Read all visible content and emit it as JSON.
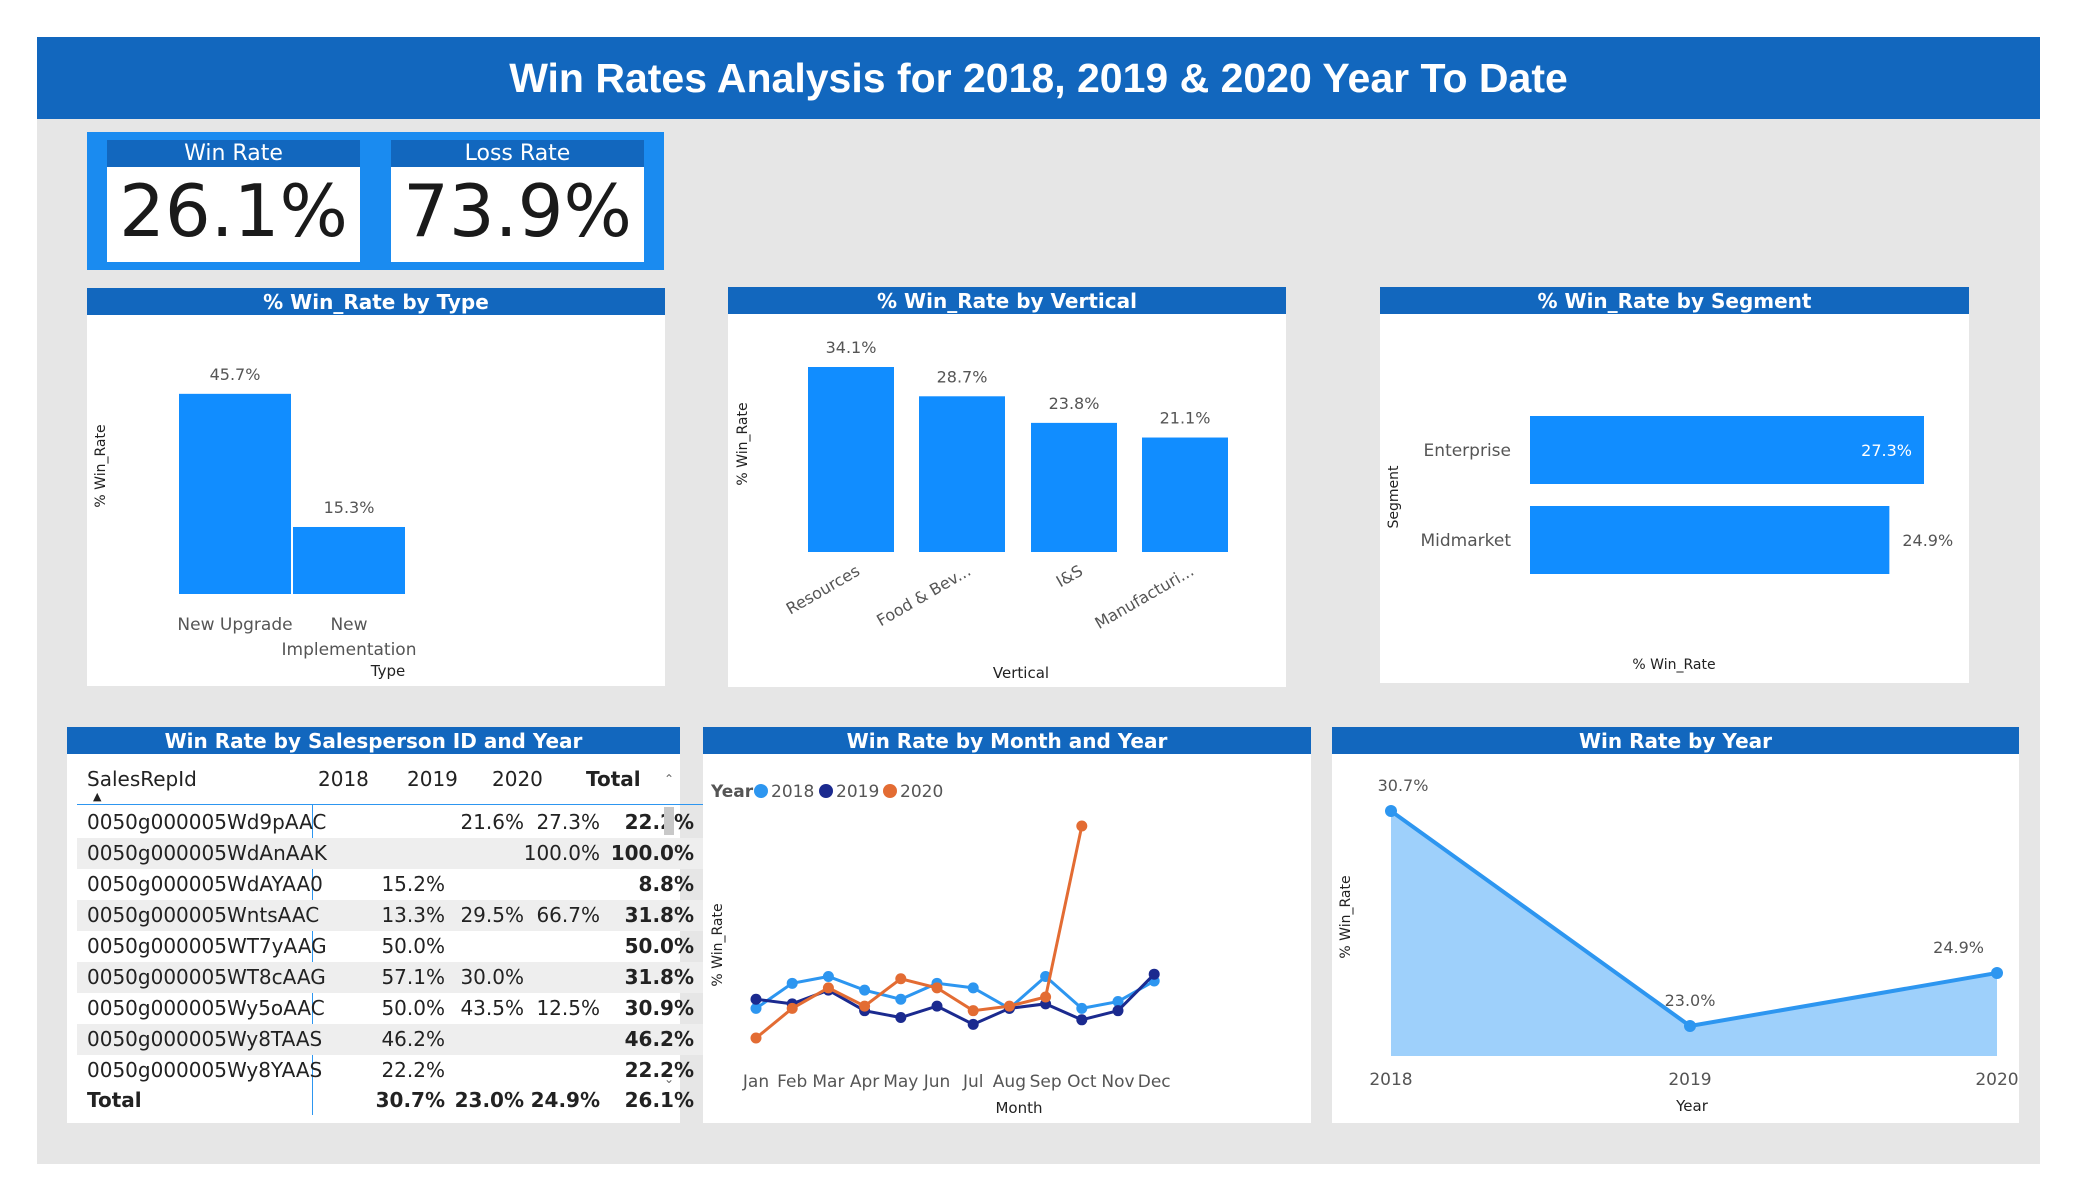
{
  "title": "Win Rates Analysis for 2018, 2019 & 2020 Year To Date",
  "kpis": {
    "win": {
      "label": "Win Rate",
      "value": "26.1%"
    },
    "loss": {
      "label": "Loss Rate",
      "value": "73.9%"
    }
  },
  "colors": {
    "header": "#1267be",
    "bar": "#118dff",
    "s2018": "#2d96f0",
    "s2019": "#1b2a8f",
    "s2020": "#e36c33",
    "area": "#9ed0fb"
  },
  "chart_data": [
    {
      "id": "by_type",
      "type": "bar",
      "title": "% Win_Rate by Type",
      "xlabel": "Type",
      "ylabel": "% Win_Rate",
      "categories": [
        "New Upgrade",
        "New Implementation"
      ],
      "values": [
        45.7,
        15.3
      ],
      "labels": [
        "45.7%",
        "15.3%"
      ],
      "ylim": [
        0,
        50
      ]
    },
    {
      "id": "by_vertical",
      "type": "bar",
      "title": "% Win_Rate by Vertical",
      "xlabel": "Vertical",
      "ylabel": "% Win_Rate",
      "categories": [
        "Resources",
        "Food & Bev...",
        "I&S",
        "Manufacturi..."
      ],
      "values": [
        34.1,
        28.7,
        23.8,
        21.1
      ],
      "labels": [
        "34.1%",
        "28.7%",
        "23.8%",
        "21.1%"
      ],
      "ylim": [
        0,
        38
      ]
    },
    {
      "id": "by_segment",
      "type": "bar",
      "orientation": "horizontal",
      "title": "% Win_Rate by Segment",
      "xlabel": "% Win_Rate",
      "ylabel": "Segment",
      "categories": [
        "Enterprise",
        "Midmarket"
      ],
      "values": [
        27.3,
        24.9
      ],
      "labels": [
        "27.3%",
        "24.9%"
      ],
      "xlim": [
        0,
        30
      ]
    },
    {
      "id": "by_month",
      "type": "line",
      "title": "Win Rate by Month and Year",
      "xlabel": "Month",
      "ylabel": "% Win_Rate",
      "legend_title": "Year",
      "legend_position": "top-left",
      "categories": [
        "Jan",
        "Feb",
        "Mar",
        "Apr",
        "May",
        "Jun",
        "Jul",
        "Aug",
        "Sep",
        "Oct",
        "Nov",
        "Dec"
      ],
      "ylim": [
        0,
        100
      ],
      "series": [
        {
          "name": "2018",
          "values": [
            20,
            31,
            34,
            28,
            24,
            31,
            29,
            20,
            34,
            20,
            23,
            32
          ]
        },
        {
          "name": "2019",
          "values": [
            24,
            22,
            28,
            19,
            16,
            21,
            13,
            20,
            22,
            15,
            19,
            35
          ]
        },
        {
          "name": "2020",
          "values": [
            7,
            20,
            29,
            21,
            33,
            29,
            19,
            21,
            25,
            100,
            null,
            null
          ]
        }
      ]
    },
    {
      "id": "by_year",
      "type": "area",
      "title": "Win Rate by Year",
      "xlabel": "Year",
      "ylabel": "% Win_Rate",
      "categories": [
        "2018",
        "2019",
        "2020"
      ],
      "values": [
        30.7,
        23.0,
        24.9
      ],
      "labels": [
        "30.7%",
        "23.0%",
        "24.9%"
      ],
      "ylim": [
        19.3,
        31.7
      ]
    }
  ],
  "table": {
    "title": "Win Rate by Salesperson ID and Year",
    "columns": [
      "SalesRepId",
      "2018",
      "2019",
      "2020",
      "Total"
    ],
    "sort_arrow": "▲",
    "rows": [
      [
        "0050g000005Wd9pAAC",
        "",
        "21.6%",
        "27.3%",
        "22.2%"
      ],
      [
        "0050g000005WdAnAAK",
        "",
        "",
        "100.0%",
        "100.0%"
      ],
      [
        "0050g000005WdAYAA0",
        "15.2%",
        "",
        "",
        "8.8%"
      ],
      [
        "0050g000005WntsAAC",
        "13.3%",
        "29.5%",
        "66.7%",
        "31.8%"
      ],
      [
        "0050g000005WT7yAAG",
        "50.0%",
        "",
        "",
        "50.0%"
      ],
      [
        "0050g000005WT8cAAG",
        "57.1%",
        "30.0%",
        "",
        "31.8%"
      ],
      [
        "0050g000005Wy5oAAC",
        "50.0%",
        "43.5%",
        "12.5%",
        "30.9%"
      ],
      [
        "0050g000005Wy8TAAS",
        "46.2%",
        "",
        "",
        "46.2%"
      ],
      [
        "0050g000005Wy8YAAS",
        "22.2%",
        "",
        "",
        "22.2%"
      ]
    ],
    "total": [
      "Total",
      "30.7%",
      "23.0%",
      "24.9%",
      "26.1%"
    ]
  }
}
